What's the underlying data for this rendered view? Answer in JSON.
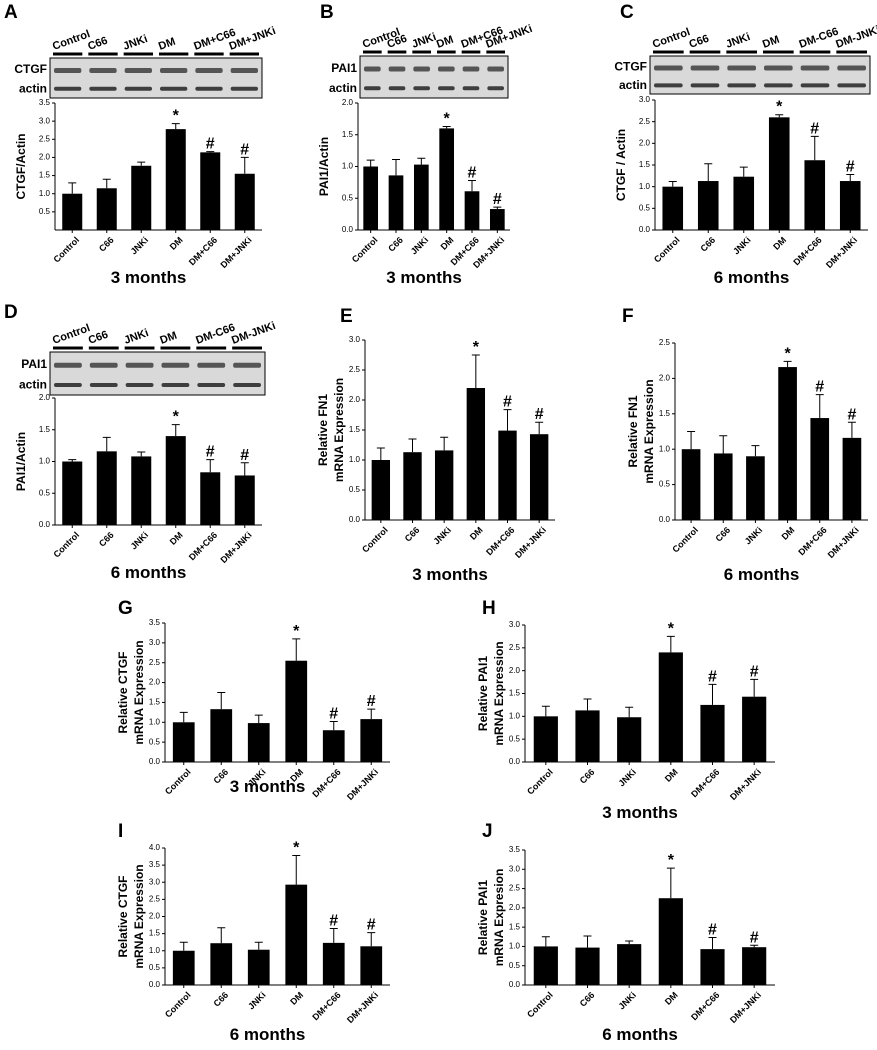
{
  "chart_data": [
    {
      "type": "bar",
      "panel": "A",
      "blot": {
        "lanes": [
          "Control",
          "C66",
          "JNKi",
          "DM",
          "DM+C66",
          "DM+JNKi"
        ],
        "rows": [
          "CTGF",
          "actin"
        ]
      },
      "ylabel": [
        "CTGF/Actin"
      ],
      "categories": [
        "Control",
        "C66",
        "JNKi",
        "DM",
        "DM+C66",
        "DM+JNKi"
      ],
      "values": [
        1.0,
        1.15,
        1.77,
        2.78,
        2.14,
        1.55
      ],
      "errors": [
        0.3,
        0.25,
        0.1,
        0.15,
        0.02,
        0.45
      ],
      "annotations": [
        null,
        null,
        null,
        "*",
        "#",
        "#"
      ],
      "ylim": [
        0,
        3.5
      ],
      "yticks": [
        0.5,
        {
          "value": 1,
          "label": "1.0"
        },
        1.5,
        {
          "value": 2,
          "label": "2.0"
        },
        2.5,
        {
          "value": 3,
          "label": "3.0"
        },
        3.5
      ],
      "subtitle": "3 months",
      "color": "#000000"
    },
    {
      "type": "bar",
      "panel": "B",
      "blot": {
        "lanes": [
          "Control",
          "C66",
          "JNKi",
          "DM",
          "DM+C66",
          "DM+JNKi"
        ],
        "rows": [
          "PAI1",
          "actin"
        ]
      },
      "ylabel": [
        "PAI1/Actin"
      ],
      "categories": [
        "Control",
        "C66",
        "JNKi",
        "DM",
        "DM+C66",
        "DM+JNKi"
      ],
      "values": [
        1.0,
        0.86,
        1.03,
        1.6,
        0.61,
        0.33
      ],
      "errors": [
        0.1,
        0.25,
        0.1,
        0.03,
        0.17,
        0.03
      ],
      "annotations": [
        null,
        null,
        null,
        "*",
        "#",
        "#"
      ],
      "ylim": [
        0,
        2
      ],
      "yticks": [
        {
          "value": 0,
          "label": "0.0"
        },
        0.5,
        {
          "value": 1,
          "label": "1.0"
        },
        1.5,
        {
          "value": 2,
          "label": "2.0"
        }
      ],
      "subtitle": "3 months",
      "color": "#000000"
    },
    {
      "type": "bar",
      "panel": "C",
      "blot": {
        "lanes": [
          "Control",
          "C66",
          "JNKi",
          "DM",
          "DM-C66",
          "DM-JNKi"
        ],
        "rows": [
          "CTGF",
          "actin"
        ]
      },
      "ylabel": [
        "CTGF / Actin"
      ],
      "categories": [
        "Control",
        "C66",
        "JNKi",
        "DM",
        "DM+C66",
        "DM+JNKi"
      ],
      "values": [
        1.0,
        1.13,
        1.23,
        2.6,
        1.61,
        1.13
      ],
      "errors": [
        0.12,
        0.4,
        0.22,
        0.06,
        0.55,
        0.15
      ],
      "annotations": [
        null,
        null,
        null,
        "*",
        "#",
        "#"
      ],
      "ylim": [
        0,
        3
      ],
      "yticks": [
        {
          "value": 0,
          "label": "0.0"
        },
        0.5,
        {
          "value": 1,
          "label": "1.0"
        },
        1.5,
        {
          "value": 2,
          "label": "2.0"
        },
        2.5,
        {
          "value": 3,
          "label": "3.0"
        }
      ],
      "subtitle": "6 months",
      "color": "#000000"
    },
    {
      "type": "bar",
      "panel": "D",
      "blot": {
        "lanes": [
          "Control",
          "C66",
          "JNKi",
          "DM",
          "DM-C66",
          "DM-JNKi"
        ],
        "rows": [
          "PAI1",
          "actin"
        ]
      },
      "ylabel": [
        "PAI1/Actin"
      ],
      "categories": [
        "Control",
        "C66",
        "JNKi",
        "DM",
        "DM+C66",
        "DM+JNKi"
      ],
      "values": [
        1.0,
        1.16,
        1.08,
        1.4,
        0.83,
        0.78
      ],
      "errors": [
        0.03,
        0.22,
        0.07,
        0.18,
        0.2,
        0.2
      ],
      "annotations": [
        null,
        null,
        null,
        "*",
        "#",
        "#"
      ],
      "ylim": [
        0,
        2
      ],
      "yticks": [
        {
          "value": 0,
          "label": "0.0"
        },
        0.5,
        {
          "value": 1,
          "label": "1.0"
        },
        1.5,
        {
          "value": 2,
          "label": "2.0"
        }
      ],
      "subtitle": "6 months",
      "color": "#000000"
    },
    {
      "type": "bar",
      "panel": "E",
      "ylabel": [
        "Relative FN1",
        "mRNA Expression"
      ],
      "categories": [
        "Control",
        "C66",
        "JNKi",
        "DM",
        "DM+C66",
        "DM+JNKi"
      ],
      "values": [
        1.0,
        1.13,
        1.16,
        2.2,
        1.49,
        1.43
      ],
      "errors": [
        0.2,
        0.22,
        0.22,
        0.55,
        0.35,
        0.2
      ],
      "annotations": [
        null,
        null,
        null,
        "*",
        "#",
        "#"
      ],
      "ylim": [
        0,
        3
      ],
      "yticks": [
        {
          "value": 0,
          "label": "0.0"
        },
        0.5,
        {
          "value": 1,
          "label": "1.0"
        },
        1.5,
        {
          "value": 2,
          "label": "2.0"
        },
        2.5,
        {
          "value": 3,
          "label": "3.0"
        }
      ],
      "subtitle": "3 months",
      "color": "#000000"
    },
    {
      "type": "bar",
      "panel": "F",
      "ylabel": [
        "Relative FN1",
        "mRNA Expression"
      ],
      "categories": [
        "Control",
        "C66",
        "JNKi",
        "DM",
        "DM+C66",
        "DM+JNKi"
      ],
      "values": [
        1.0,
        0.94,
        0.9,
        2.16,
        1.44,
        1.16
      ],
      "errors": [
        0.25,
        0.25,
        0.15,
        0.08,
        0.33,
        0.22
      ],
      "annotations": [
        null,
        null,
        null,
        "*",
        "#",
        "#"
      ],
      "ylim": [
        0,
        2.5
      ],
      "yticks": [
        {
          "value": 0,
          "label": "0.0"
        },
        0.5,
        {
          "value": 1,
          "label": "1.0"
        },
        1.5,
        {
          "value": 2,
          "label": "2.0"
        },
        2.5
      ],
      "subtitle": "6 months",
      "color": "#000000"
    },
    {
      "type": "bar",
      "panel": "G",
      "ylabel": [
        "Relative CTGF",
        "mRNA Expression"
      ],
      "categories": [
        "Control",
        "C66",
        "JNKi",
        "DM",
        "DM+C66",
        "DM+JNKi"
      ],
      "values": [
        1.0,
        1.33,
        0.98,
        2.55,
        0.8,
        1.08
      ],
      "errors": [
        0.25,
        0.42,
        0.2,
        0.55,
        0.22,
        0.25
      ],
      "annotations": [
        null,
        null,
        null,
        "*",
        "#",
        "#"
      ],
      "ylim": [
        0,
        3.5
      ],
      "yticks": [
        {
          "value": 0,
          "label": "0.0"
        },
        0.5,
        {
          "value": 1,
          "label": "1.0"
        },
        1.5,
        {
          "value": 2,
          "label": "2.0"
        },
        2.5,
        {
          "value": 3,
          "label": "3.0"
        },
        3.5
      ],
      "subtitle": "3 months",
      "color": "#000000"
    },
    {
      "type": "bar",
      "panel": "H",
      "ylabel": [
        "Relative PAI1",
        "mRNA Expression"
      ],
      "categories": [
        "Control",
        "C66",
        "JNKi",
        "DM",
        "DM+C66",
        "DM+JNKi"
      ],
      "values": [
        1.0,
        1.13,
        0.98,
        2.4,
        1.25,
        1.43
      ],
      "errors": [
        0.22,
        0.25,
        0.22,
        0.35,
        0.45,
        0.38
      ],
      "annotations": [
        null,
        null,
        null,
        "*",
        "#",
        "#"
      ],
      "ylim": [
        0,
        3
      ],
      "yticks": [
        {
          "value": 0,
          "label": "0.0"
        },
        0.5,
        {
          "value": 1,
          "label": "1.0"
        },
        1.5,
        {
          "value": 2,
          "label": "2.0"
        },
        2.5,
        {
          "value": 3,
          "label": "3.0"
        }
      ],
      "subtitle": "3 months",
      "color": "#000000"
    },
    {
      "type": "bar",
      "panel": "I",
      "ylabel": [
        "Relative CTGF",
        "mRNA Expression"
      ],
      "categories": [
        "Control",
        "C66",
        "JNKi",
        "DM",
        "DM+C66",
        "DM+JNKi"
      ],
      "values": [
        1.0,
        1.22,
        1.03,
        2.93,
        1.23,
        1.13
      ],
      "errors": [
        0.25,
        0.45,
        0.22,
        0.85,
        0.42,
        0.4
      ],
      "annotations": [
        null,
        null,
        null,
        "*",
        "#",
        "#"
      ],
      "ylim": [
        0,
        4
      ],
      "yticks": [
        {
          "value": 0,
          "label": "0.0"
        },
        0.5,
        {
          "value": 1,
          "label": "1.0"
        },
        1.5,
        {
          "value": 2,
          "label": "2.0"
        },
        2.5,
        {
          "value": 3,
          "label": "3.0"
        },
        3.5,
        {
          "value": 4,
          "label": "4.0"
        }
      ],
      "subtitle": "6 months",
      "color": "#000000"
    },
    {
      "type": "bar",
      "panel": "J",
      "ylabel": [
        "Relative PAI1",
        "mRNA Expresion"
      ],
      "categories": [
        "Control",
        "C66",
        "JNKi",
        "DM",
        "DM+C66",
        "DM+JNKi"
      ],
      "values": [
        1.0,
        0.97,
        1.06,
        2.25,
        0.93,
        0.98
      ],
      "errors": [
        0.25,
        0.3,
        0.08,
        0.78,
        0.3,
        0.05
      ],
      "annotations": [
        null,
        null,
        null,
        "*",
        "#",
        "#"
      ],
      "ylim": [
        0,
        3.5
      ],
      "yticks": [
        {
          "value": 0,
          "label": "0.0"
        },
        0.5,
        {
          "value": 1,
          "label": "1.0"
        },
        1.5,
        {
          "value": 2,
          "label": "2.0"
        },
        2.5,
        {
          "value": 3,
          "label": "3.0"
        },
        3.5
      ],
      "subtitle": "6 months",
      "color": "#000000"
    }
  ]
}
